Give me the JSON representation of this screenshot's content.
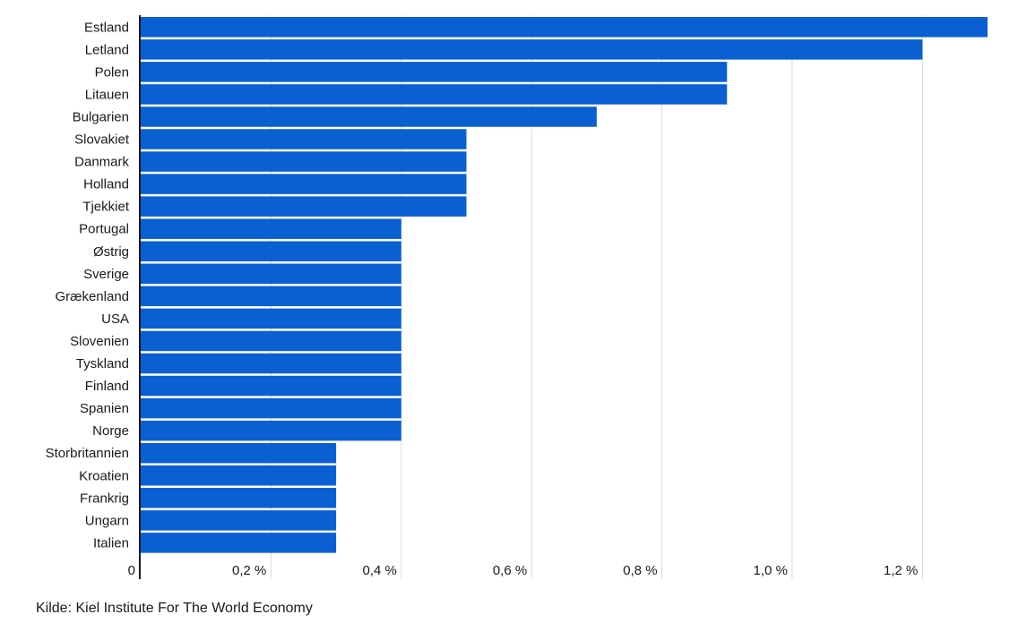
{
  "chart_data": {
    "type": "bar",
    "orientation": "horizontal",
    "categories": [
      "Estland",
      "Letland",
      "Polen",
      "Litauen",
      "Bulgarien",
      "Slovakiet",
      "Danmark",
      "Holland",
      "Tjekkiet",
      "Portugal",
      "Østrig",
      "Sverige",
      "Grækenland",
      "USA",
      "Slovenien",
      "Tyskland",
      "Finland",
      "Spanien",
      "Norge",
      "Storbritannien",
      "Kroatien",
      "Frankrig",
      "Ungarn",
      "Italien"
    ],
    "values": [
      1.3,
      1.2,
      0.9,
      0.9,
      0.7,
      0.5,
      0.5,
      0.5,
      0.5,
      0.4,
      0.4,
      0.4,
      0.4,
      0.4,
      0.4,
      0.4,
      0.4,
      0.4,
      0.4,
      0.3,
      0.3,
      0.3,
      0.3,
      0.3
    ],
    "xlim": [
      0,
      1.3
    ],
    "xticks": [
      0,
      0.2,
      0.4,
      0.6,
      0.8,
      1.0,
      1.2
    ],
    "xtick_labels": [
      "0",
      "0,2 %",
      "0,4 %",
      "0,6 %",
      "0,8 %",
      "1,0 %",
      "1,2 %"
    ],
    "grid": "vertical",
    "bar_color": "#0a5fd2",
    "grid_color": "#d9d9d9",
    "axis_color": "#1a1a1a"
  },
  "source": "Kilde: Kiel Institute For The World Economy"
}
